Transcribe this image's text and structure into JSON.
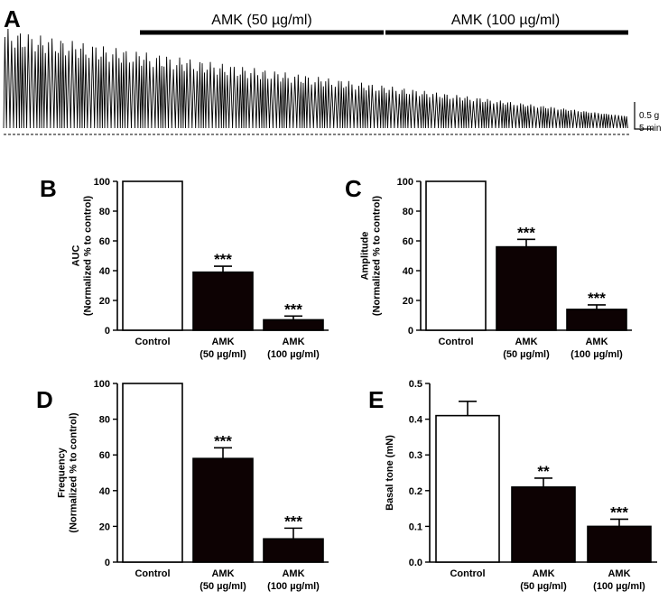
{
  "figure": {
    "panel_letters": [
      "A",
      "B",
      "C",
      "D",
      "E"
    ],
    "colors": {
      "control_fill": "#ffffff",
      "treated_fill": "#0d0203",
      "stroke": "#000000"
    }
  },
  "trace": {
    "bar_labels": [
      "AMK (50 µg/ml)",
      "AMK (100 µg/ml)"
    ],
    "scale_amplitude": "0.5 g",
    "scale_time": "5 min"
  },
  "chart_data": [
    {
      "panel": "B",
      "type": "bar",
      "categories": [
        "Control",
        "AMK\n(50 µg/ml)",
        "AMK\n(100 µg/ml)"
      ],
      "values": [
        100,
        39,
        7
      ],
      "errors": [
        0,
        4,
        2.5
      ],
      "significance": [
        "",
        "***",
        "***"
      ],
      "ylabel": [
        "AUC",
        "(Normalized % to control)"
      ],
      "ylim": [
        0,
        100
      ],
      "yticks": [
        "0",
        "20",
        "40",
        "60",
        "80",
        "100"
      ]
    },
    {
      "panel": "C",
      "type": "bar",
      "categories": [
        "Control",
        "AMK\n(50 µg/ml)",
        "AMK\n(100 µg/ml)"
      ],
      "values": [
        100,
        56,
        14
      ],
      "errors": [
        0,
        5,
        3
      ],
      "significance": [
        "",
        "***",
        "***"
      ],
      "ylabel": [
        "Amplitude",
        "(Normalized % to control)"
      ],
      "ylim": [
        0,
        100
      ],
      "yticks": [
        "0",
        "20",
        "40",
        "60",
        "80",
        "100"
      ]
    },
    {
      "panel": "D",
      "type": "bar",
      "categories": [
        "Control",
        "AMK\n(50 µg/ml)",
        "AMK\n(100 µg/ml)"
      ],
      "values": [
        100,
        58,
        13
      ],
      "errors": [
        0,
        6,
        6
      ],
      "significance": [
        "",
        "***",
        "***"
      ],
      "ylabel": [
        "Frequency",
        "(Normalized % to control)"
      ],
      "ylim": [
        0,
        100
      ],
      "yticks": [
        "0",
        "20",
        "40",
        "60",
        "80",
        "100"
      ]
    },
    {
      "panel": "E",
      "type": "bar",
      "categories": [
        "Control",
        "AMK\n(50 µg/ml)",
        "AMK\n(100 µg/ml)"
      ],
      "values": [
        0.41,
        0.21,
        0.1
      ],
      "errors": [
        0.04,
        0.025,
        0.02
      ],
      "significance": [
        "",
        "**",
        "***"
      ],
      "ylabel": [
        "Basal tone (mN)"
      ],
      "ylim": [
        0,
        0.5
      ],
      "yticks": [
        "0.0",
        "0.1",
        "0.2",
        "0.3",
        "0.4",
        "0.5"
      ]
    }
  ]
}
